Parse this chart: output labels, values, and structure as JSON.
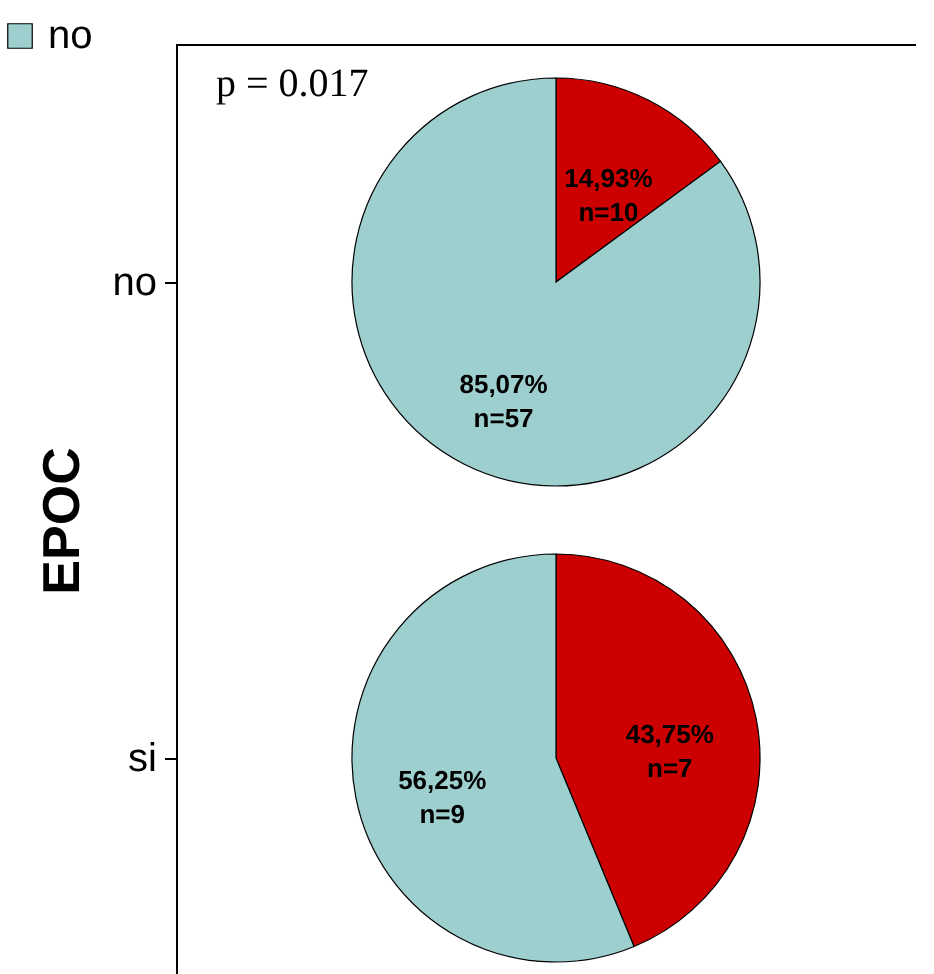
{
  "chart_data": [
    {
      "type": "pie",
      "ylabel": "no",
      "categories": [
        null,
        "no"
      ],
      "values": [
        14.93,
        85.07
      ],
      "colors": [
        "#cc0000",
        "#9ecfcf"
      ],
      "value_labels": [
        "14,93%\nn=10",
        "85,07%\nn=57"
      ],
      "legend": "top left",
      "annotations": [
        "p = 0.017",
        "EPOC"
      ]
    },
    {
      "type": "pie",
      "ylabel": "si",
      "categories": [
        null,
        null
      ],
      "values": [
        43.75,
        56.25
      ],
      "colors": [
        "#cc0000",
        "#9ecfcf"
      ],
      "value_labels": [
        "43,75%\nn=7",
        "56,25%\nn=9"
      ]
    }
  ]
}
